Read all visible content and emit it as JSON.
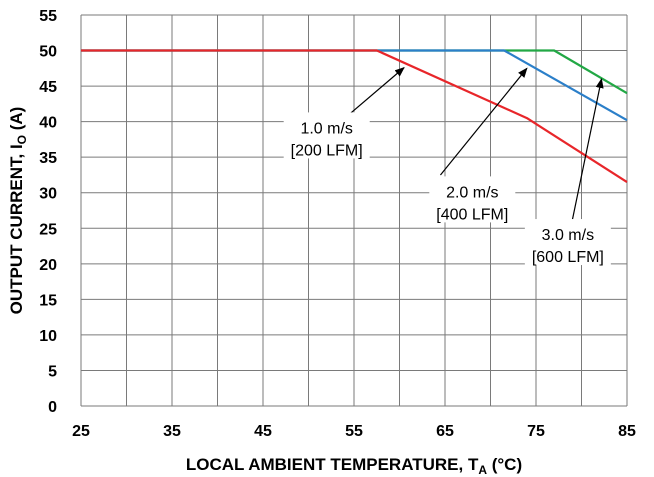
{
  "chart_data": {
    "type": "line",
    "title": "",
    "xlabel": {
      "main": "LOCAL AMBIENT TEMPERATURE, T",
      "sub": "A",
      "unit": " (°C)"
    },
    "ylabel": {
      "main": "OUTPUT CURRENT, I",
      "sub": "O",
      "unit": " (A)"
    },
    "xlim": [
      25,
      85
    ],
    "ylim": [
      0,
      55
    ],
    "xticks": [
      25,
      35,
      45,
      55,
      65,
      75,
      85
    ],
    "yticks": [
      0,
      5,
      10,
      15,
      20,
      25,
      30,
      35,
      40,
      45,
      50,
      55
    ],
    "grid": true,
    "series": [
      {
        "name": "3.0 m/s [600 LFM]",
        "color": "#22a845",
        "x": [
          25,
          77,
          85
        ],
        "y": [
          50,
          50,
          44
        ]
      },
      {
        "name": "2.0 m/s [400 LFM]",
        "color": "#2b7fc9",
        "x": [
          25,
          71.5,
          85
        ],
        "y": [
          50,
          50,
          40.2
        ]
      },
      {
        "name": "1.0 m/s [200 LFM]",
        "color": "#e8262a",
        "x": [
          25,
          57.5,
          74,
          85
        ],
        "y": [
          50,
          50,
          40.5,
          31.5
        ]
      }
    ],
    "annotations": [
      {
        "lines": [
          "1.0 m/s",
          "[200 LFM]"
        ],
        "text_pos": [
          52,
          37.5
        ],
        "arrow_from": [
          54,
          40.5
        ],
        "arrow_to": [
          60.5,
          47.6
        ]
      },
      {
        "lines": [
          "2.0 m/s",
          "[400 LFM]"
        ],
        "text_pos": [
          68,
          28.5
        ],
        "arrow_from": [
          64.5,
          32.5
        ],
        "arrow_to": [
          74,
          47.5
        ]
      },
      {
        "lines": [
          "3.0 m/s",
          "[600 LFM]"
        ],
        "text_pos": [
          78.5,
          22.5
        ],
        "arrow_from": [
          79,
          26.2
        ],
        "arrow_to": [
          82.2,
          46
        ]
      }
    ]
  }
}
